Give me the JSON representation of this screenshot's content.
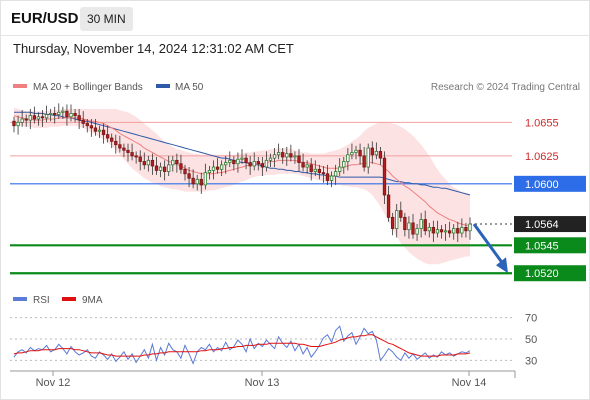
{
  "header": {
    "symbol": "EUR/USD",
    "timeframe": "30 MIN",
    "datetime": "Thursday, November 14, 2024 12:31:02 AM CET"
  },
  "legend": {
    "ma20_bb": {
      "label": "MA 20 + Bollinger Bands",
      "color": "#f08080"
    },
    "ma50": {
      "label": "MA 50",
      "color": "#2e5aa7"
    },
    "credit": "Research © 2024 Trading Central"
  },
  "rsi_legend": {
    "rsi": {
      "label": "RSI",
      "color": "#5a7bd6"
    },
    "ma9": {
      "label": "9MA",
      "color": "#e01010"
    }
  },
  "chart_data": [
    {
      "type": "candlestick",
      "title": "EUR/USD",
      "x_axis": {
        "ticks": [
          "Nov 12",
          "Nov 13",
          "Nov 14"
        ]
      },
      "ylim": [
        1.0505,
        1.0675
      ],
      "price_axis_labels": [
        "1.0655",
        "1.0625",
        "1.0600",
        "1.0564",
        "1.0545",
        "1.0520"
      ],
      "levels": [
        {
          "value": 1.0655,
          "label": "1.0655",
          "kind": "resistance",
          "color": "#e65555"
        },
        {
          "value": 1.0625,
          "label": "1.0625",
          "kind": "resistance",
          "color": "#e65555"
        },
        {
          "value": 1.06,
          "label": "1.0600",
          "kind": "pivot",
          "color": "#2d6ee8"
        },
        {
          "value": 1.0564,
          "label": "1.0564",
          "kind": "last-price",
          "color": "#222222"
        },
        {
          "value": 1.0545,
          "label": "1.0545",
          "kind": "target",
          "color": "#0a8a1a"
        },
        {
          "value": 1.052,
          "label": "1.0520",
          "kind": "target",
          "color": "#0a8a1a"
        }
      ],
      "close": [
        1.0652,
        1.0655,
        1.0658,
        1.0657,
        1.0661,
        1.0658,
        1.066,
        1.0659,
        1.0662,
        1.0663,
        1.0662,
        1.0664,
        1.0665,
        1.066,
        1.0663,
        1.0661,
        1.0657,
        1.0654,
        1.0652,
        1.065,
        1.0647,
        1.0648,
        1.0644,
        1.0641,
        1.0638,
        1.0635,
        1.0632,
        1.063,
        1.0628,
        1.0625,
        1.0624,
        1.062,
        1.0617,
        1.0621,
        1.0616,
        1.0612,
        1.0615,
        1.0611,
        1.0617,
        1.0621,
        1.0618,
        1.0613,
        1.0609,
        1.0605,
        1.06,
        1.0604,
        1.0599,
        1.061,
        1.0612,
        1.0615,
        1.0613,
        1.0617,
        1.0619,
        1.0621,
        1.0618,
        1.0622,
        1.0623,
        1.0619,
        1.0616,
        1.062,
        1.0618,
        1.0615,
        1.0621,
        1.0623,
        1.0626,
        1.0628,
        1.0624,
        1.0627,
        1.0624,
        1.0625,
        1.0619,
        1.0615,
        1.0617,
        1.0611,
        1.0613,
        1.061,
        1.0609,
        1.0603,
        1.0607,
        1.0611,
        1.0615,
        1.062,
        1.0626,
        1.0628,
        1.063,
        1.0625,
        1.0615,
        1.0632,
        1.0626,
        1.0629,
        1.0623,
        1.059,
        1.057,
        1.056,
        1.0576,
        1.057,
        1.0559,
        1.0565,
        1.0555,
        1.056,
        1.0568,
        1.0558,
        1.0561,
        1.0556,
        1.0559,
        1.0557,
        1.0558,
        1.0556,
        1.056,
        1.0556,
        1.0561,
        1.0558,
        1.0564
      ],
      "ma20": [
        1.0661,
        1.066,
        1.0659,
        1.0658,
        1.0658,
        1.0657,
        1.0657,
        1.0657,
        1.0658,
        1.0658,
        1.0658,
        1.0659,
        1.0659,
        1.0659,
        1.0659,
        1.0659,
        1.0659,
        1.0658,
        1.0657,
        1.0656,
        1.0656,
        1.0655,
        1.0654,
        1.0652,
        1.065,
        1.0648,
        1.0645,
        1.0643,
        1.0641,
        1.0639,
        1.0637,
        1.0635,
        1.0632,
        1.063,
        1.0628,
        1.0626,
        1.0624,
        1.0622,
        1.062,
        1.0619,
        1.0617,
        1.0616,
        1.0614,
        1.0612,
        1.0611,
        1.061,
        1.0609,
        1.0609,
        1.0609,
        1.0609,
        1.061,
        1.061,
        1.0611,
        1.0612,
        1.0613,
        1.0614,
        1.0615,
        1.0616,
        1.0617,
        1.0617,
        1.0618,
        1.0618,
        1.0619,
        1.062,
        1.062,
        1.0621,
        1.0621,
        1.0621,
        1.0621,
        1.0621,
        1.062,
        1.0619,
        1.0619,
        1.0618,
        1.0617,
        1.0616,
        1.0615,
        1.0614,
        1.0614,
        1.0614,
        1.0614,
        1.0615,
        1.0616,
        1.0617,
        1.0617,
        1.0618,
        1.0618,
        1.0619,
        1.0619,
        1.0618,
        1.0617,
        1.0614,
        1.0611,
        1.0607,
        1.0604,
        1.0601,
        1.0598,
        1.0596,
        1.0593,
        1.059,
        1.0587,
        1.0584,
        1.058,
        1.0577,
        1.0574,
        1.0572,
        1.057,
        1.0568,
        1.0567,
        1.0565,
        1.0564,
        1.0563,
        1.0563
      ],
      "bb_upper": [
        1.0668,
        1.0667,
        1.0666,
        1.0665,
        1.0665,
        1.0665,
        1.0665,
        1.0665,
        1.0665,
        1.0666,
        1.0666,
        1.0666,
        1.0667,
        1.0667,
        1.0667,
        1.0667,
        1.0667,
        1.0667,
        1.0667,
        1.0667,
        1.0667,
        1.0667,
        1.0667,
        1.0667,
        1.0667,
        1.0667,
        1.0666,
        1.0665,
        1.0664,
        1.0662,
        1.066,
        1.0657,
        1.0654,
        1.0651,
        1.0648,
        1.0645,
        1.0641,
        1.0638,
        1.0635,
        1.0633,
        1.0631,
        1.063,
        1.0629,
        1.0628,
        1.0627,
        1.0627,
        1.0626,
        1.0626,
        1.0626,
        1.0626,
        1.0626,
        1.0626,
        1.0626,
        1.0626,
        1.0626,
        1.0627,
        1.0627,
        1.0628,
        1.0628,
        1.0629,
        1.0629,
        1.063,
        1.063,
        1.0631,
        1.0631,
        1.0632,
        1.0632,
        1.0632,
        1.0631,
        1.063,
        1.0629,
        1.0628,
        1.0628,
        1.0627,
        1.0627,
        1.0627,
        1.0627,
        1.0628,
        1.0629,
        1.063,
        1.0631,
        1.0633,
        1.0635,
        1.0638,
        1.064,
        1.0643,
        1.0647,
        1.065,
        1.0652,
        1.0654,
        1.0655,
        1.0655,
        1.0655,
        1.0654,
        1.0653,
        1.0651,
        1.0649,
        1.0646,
        1.0643,
        1.0639,
        1.0635,
        1.063,
        1.0625,
        1.0619,
        1.0613,
        1.0608,
        1.0604,
        1.06,
        1.0597,
        1.0595,
        1.0593,
        1.0592,
        1.0591
      ],
      "bb_lower": [
        1.0654,
        1.0653,
        1.0652,
        1.0651,
        1.0651,
        1.065,
        1.065,
        1.065,
        1.065,
        1.0651,
        1.0651,
        1.0651,
        1.0652,
        1.0652,
        1.0652,
        1.0652,
        1.0651,
        1.065,
        1.0648,
        1.0646,
        1.0644,
        1.0642,
        1.064,
        1.0637,
        1.0634,
        1.063,
        1.0626,
        1.0622,
        1.0618,
        1.0614,
        1.0611,
        1.0608,
        1.0605,
        1.0603,
        1.0601,
        1.06,
        1.0598,
        1.0597,
        1.0596,
        1.0595,
        1.0595,
        1.0594,
        1.0593,
        1.0593,
        1.0593,
        1.0593,
        1.0593,
        1.0593,
        1.0594,
        1.0594,
        1.0595,
        1.0596,
        1.0597,
        1.0598,
        1.0599,
        1.0601,
        1.0602,
        1.0603,
        1.0605,
        1.0606,
        1.0607,
        1.0607,
        1.0608,
        1.0608,
        1.0608,
        1.0609,
        1.0609,
        1.0609,
        1.0609,
        1.0609,
        1.0608,
        1.0607,
        1.0606,
        1.0605,
        1.0604,
        1.0603,
        1.0602,
        1.0601,
        1.06,
        1.0599,
        1.0599,
        1.0598,
        1.0598,
        1.0597,
        1.0597,
        1.0596,
        1.0595,
        1.0593,
        1.059,
        1.0585,
        1.058,
        1.0573,
        1.0566,
        1.0559,
        1.0553,
        1.0547,
        1.0543,
        1.0539,
        1.0536,
        1.0533,
        1.0531,
        1.0529,
        1.0528,
        1.0528,
        1.0528,
        1.0529,
        1.053,
        1.0531,
        1.0532,
        1.0533,
        1.0534,
        1.0535,
        1.0535
      ],
      "ma50": [
        1.0664,
        1.0664,
        1.0664,
        1.0664,
        1.0664,
        1.0663,
        1.0663,
        1.0663,
        1.0662,
        1.0662,
        1.0661,
        1.0661,
        1.066,
        1.0659,
        1.0659,
        1.0658,
        1.0657,
        1.0656,
        1.0656,
        1.0655,
        1.0654,
        1.0653,
        1.0652,
        1.0651,
        1.065,
        1.0649,
        1.0648,
        1.0647,
        1.0646,
        1.0645,
        1.0644,
        1.0643,
        1.0642,
        1.0641,
        1.064,
        1.0639,
        1.0638,
        1.0637,
        1.0636,
        1.0635,
        1.0634,
        1.0633,
        1.0632,
        1.0631,
        1.063,
        1.0629,
        1.0628,
        1.0627,
        1.0626,
        1.0625,
        1.0624,
        1.0623,
        1.0623,
        1.0622,
        1.0621,
        1.062,
        1.0619,
        1.0619,
        1.0618,
        1.0617,
        1.0617,
        1.0616,
        1.0615,
        1.0614,
        1.0614,
        1.0613,
        1.0613,
        1.0612,
        1.0612,
        1.0611,
        1.0611,
        1.061,
        1.061,
        1.0609,
        1.0609,
        1.0608,
        1.0608,
        1.0607,
        1.0607,
        1.0607,
        1.0606,
        1.0606,
        1.0606,
        1.0606,
        1.0606,
        1.0606,
        1.0606,
        1.0606,
        1.0606,
        1.0606,
        1.0606,
        1.0605,
        1.0604,
        1.0603,
        1.0602,
        1.0602,
        1.0601,
        1.0601,
        1.06,
        1.06,
        1.0599,
        1.0599,
        1.0598,
        1.0597,
        1.0597,
        1.0596,
        1.0596,
        1.0595,
        1.0594,
        1.0593,
        1.0592,
        1.0591,
        1.059
      ],
      "forecast": {
        "from": 1.0564,
        "to": 1.052,
        "direction": "down",
        "color": "#2a63b8"
      }
    },
    {
      "type": "line",
      "title": "RSI",
      "ylim": [
        20,
        80
      ],
      "y_ticks": [
        70,
        50,
        30
      ],
      "series": [
        {
          "name": "RSI",
          "color": "#5a7bd6",
          "values": [
            33,
            38,
            40,
            37,
            42,
            39,
            41,
            40,
            44,
            38,
            40,
            45,
            41,
            36,
            43,
            38,
            35,
            37,
            40,
            34,
            32,
            38,
            35,
            31,
            36,
            29,
            33,
            38,
            31,
            36,
            28,
            34,
            40,
            32,
            45,
            30,
            42,
            35,
            46,
            40,
            38,
            32,
            44,
            36,
            27,
            38,
            42,
            40,
            45,
            38,
            42,
            39,
            47,
            40,
            43,
            49,
            45,
            38,
            50,
            41,
            46,
            43,
            49,
            45,
            41,
            52,
            46,
            42,
            48,
            39,
            45,
            36,
            42,
            33,
            38,
            44,
            51,
            54,
            47,
            58,
            62,
            48,
            53,
            56,
            45,
            52,
            60,
            55,
            57,
            49,
            30,
            35,
            41,
            38,
            33,
            30,
            37,
            32,
            36,
            31,
            34,
            37,
            32,
            35,
            33,
            38,
            35,
            37,
            34,
            36,
            38,
            37,
            39
          ]
        },
        {
          "name": "9MA",
          "color": "#e01010",
          "values": [
            36,
            37,
            37,
            38,
            39,
            39,
            39,
            40,
            40,
            40,
            40,
            41,
            41,
            41,
            41,
            40,
            40,
            39,
            38,
            37,
            37,
            37,
            36,
            35,
            35,
            34,
            34,
            34,
            34,
            34,
            34,
            34,
            35,
            35,
            36,
            36,
            37,
            37,
            38,
            38,
            38,
            38,
            38,
            38,
            38,
            38,
            39,
            39,
            40,
            40,
            40,
            41,
            41,
            42,
            42,
            43,
            43,
            44,
            44,
            44,
            45,
            45,
            45,
            46,
            46,
            46,
            46,
            46,
            46,
            46,
            45,
            45,
            44,
            43,
            43,
            43,
            44,
            45,
            46,
            47,
            49,
            50,
            51,
            52,
            52,
            53,
            53,
            54,
            54,
            52,
            50,
            48,
            46,
            45,
            43,
            41,
            39,
            37,
            36,
            35,
            34,
            34,
            34,
            34,
            34,
            35,
            35,
            35,
            35,
            36,
            36,
            36,
            37
          ]
        }
      ]
    }
  ]
}
